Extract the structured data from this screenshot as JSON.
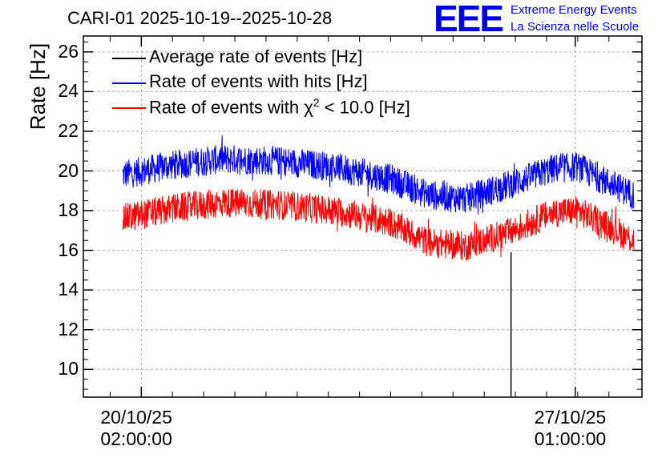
{
  "header": {
    "title": "CARI-01 2025-10-19--2025-10-28",
    "logo_text": "EEE",
    "tagline_1": "Extreme Energy Events",
    "tagline_2": "La Scienza nelle Scuole"
  },
  "colors": {
    "average": "#000000",
    "hits": "#0000ff",
    "chi2": "#ff0000",
    "logo": "#0000e6"
  },
  "chart_data": {
    "type": "line",
    "title": "CARI-01 2025-10-19--2025-10-28",
    "ylabel": "Rate [Hz]",
    "xlabel": "",
    "ylim": [
      8.6,
      26.8
    ],
    "yticks": [
      10,
      12,
      14,
      16,
      18,
      20,
      22,
      24,
      26
    ],
    "ytick_labels": [
      "10",
      "12",
      "14",
      "16",
      "18",
      "20",
      "22",
      "24",
      "26"
    ],
    "xlim_days": [
      -0.93,
      8.03
    ],
    "xticks": [
      {
        "day": 0,
        "label_date": "20/10/25",
        "label_time": "02:00:00"
      },
      {
        "day": 6.96,
        "label_date": "27/10/25",
        "label_time": "01:00:00"
      }
    ],
    "grid": true,
    "legend_position": "top-left",
    "series": [
      {
        "name": "Average rate of events [Hz]",
        "color": "#000000",
        "note": "single spike/gap near 2025-10-26",
        "points": [
          {
            "day": 5.93,
            "from": 15.9,
            "to": 8.6
          }
        ]
      },
      {
        "name": "Rate of events with hits [Hz]",
        "color": "#0000ff",
        "x_days": [
          -0.3,
          0.5,
          1.3,
          2.2,
          3.1,
          4.0,
          4.6,
          5.2,
          5.9,
          6.6,
          7.0,
          7.5,
          7.9
        ],
        "mean": [
          19.8,
          20.3,
          20.6,
          20.5,
          20.2,
          19.6,
          18.8,
          18.6,
          19.3,
          20.1,
          20.2,
          19.4,
          18.8
        ],
        "spread": 0.75
      },
      {
        "name": "Rate of events with χ2 < 10.0 [Hz]",
        "color": "#ff0000",
        "x_days": [
          -0.3,
          0.5,
          1.3,
          2.2,
          3.1,
          4.0,
          4.6,
          5.2,
          5.9,
          6.6,
          7.0,
          7.5,
          7.9
        ],
        "mean": [
          17.6,
          18.1,
          18.4,
          18.3,
          18.0,
          17.4,
          16.4,
          16.2,
          16.9,
          17.9,
          18.0,
          17.2,
          16.5
        ],
        "spread": 0.75
      }
    ]
  },
  "legend": {
    "avg": "Average rate of events [Hz]",
    "hits": "Rate of events with hits [Hz]",
    "chi2_prefix": "Rate of events with χ",
    "chi2_sup": "2",
    "chi2_suffix": " < 10.0 [Hz]"
  }
}
